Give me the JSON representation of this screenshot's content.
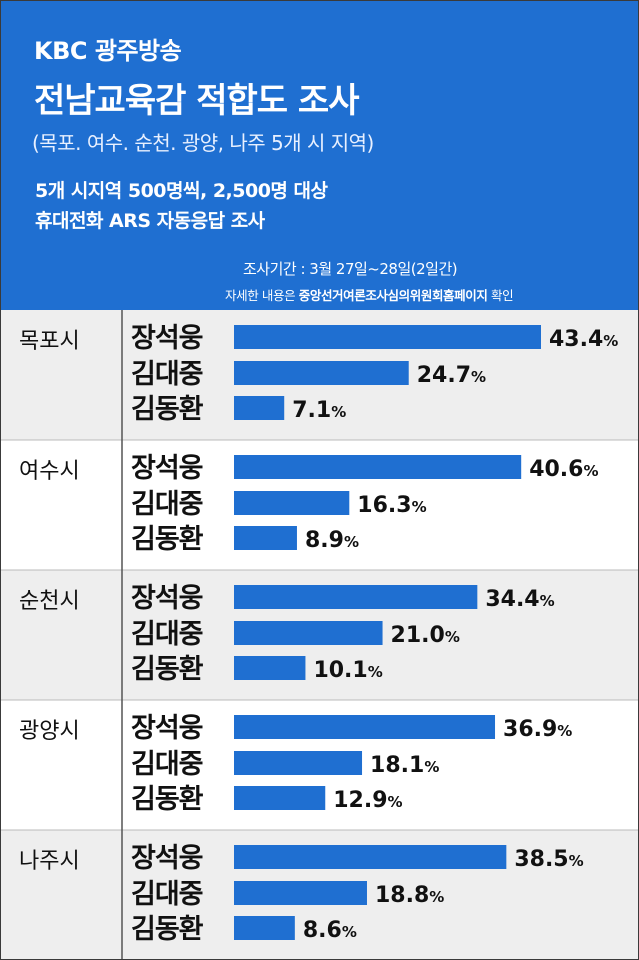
{
  "header": {
    "broadcaster": "KBC 광주방송",
    "title": "전남교육감 적합도 조사",
    "regions": "(목포. 여수. 순천. 광양, 나주 5개 시 지역)",
    "method_line1": "5개 시지역 500명씩, 2,500명 대상",
    "method_line2": "휴대전화 ARS 자동응답 조사",
    "period": "조사기간 : 3월 27일~28일(2일간)",
    "source_prefix": "자세한 내용은 ",
    "source_highlight": "중앙선거여론조사심의위원회홈페이지",
    "source_suffix": " 확인"
  },
  "colors": {
    "header_bg": "#1f6fd1",
    "bar": "#1f6fd1",
    "band_gray": "#eeeeee",
    "band_white": "#ffffff",
    "divider": "#555555",
    "text": "#111111"
  },
  "chart_data": {
    "type": "bar",
    "orientation": "horizontal",
    "unit": "%",
    "xlim": [
      0,
      43.4
    ],
    "groups": [
      {
        "region": "목포시",
        "bars": [
          {
            "candidate": "장석웅",
            "value": 43.4,
            "label": "43.4"
          },
          {
            "candidate": "김대중",
            "value": 24.7,
            "label": "24.7"
          },
          {
            "candidate": "김동환",
            "value": 7.1,
            "label": "7.1"
          }
        ]
      },
      {
        "region": "여수시",
        "bars": [
          {
            "candidate": "장석웅",
            "value": 40.6,
            "label": "40.6"
          },
          {
            "candidate": "김대중",
            "value": 16.3,
            "label": "16.3"
          },
          {
            "candidate": "김동환",
            "value": 8.9,
            "label": "8.9"
          }
        ]
      },
      {
        "region": "순천시",
        "bars": [
          {
            "candidate": "장석웅",
            "value": 34.4,
            "label": "34.4"
          },
          {
            "candidate": "김대중",
            "value": 21.0,
            "label": "21.0"
          },
          {
            "candidate": "김동환",
            "value": 10.1,
            "label": "10.1"
          }
        ]
      },
      {
        "region": "광양시",
        "bars": [
          {
            "candidate": "장석웅",
            "value": 36.9,
            "label": "36.9"
          },
          {
            "candidate": "김대중",
            "value": 18.1,
            "label": "18.1"
          },
          {
            "candidate": "김동환",
            "value": 12.9,
            "label": "12.9"
          }
        ]
      },
      {
        "region": "나주시",
        "bars": [
          {
            "candidate": "장석웅",
            "value": 38.5,
            "label": "38.5"
          },
          {
            "candidate": "김대중",
            "value": 18.8,
            "label": "18.8"
          },
          {
            "candidate": "김동환",
            "value": 8.6,
            "label": "8.6"
          }
        ]
      }
    ]
  }
}
